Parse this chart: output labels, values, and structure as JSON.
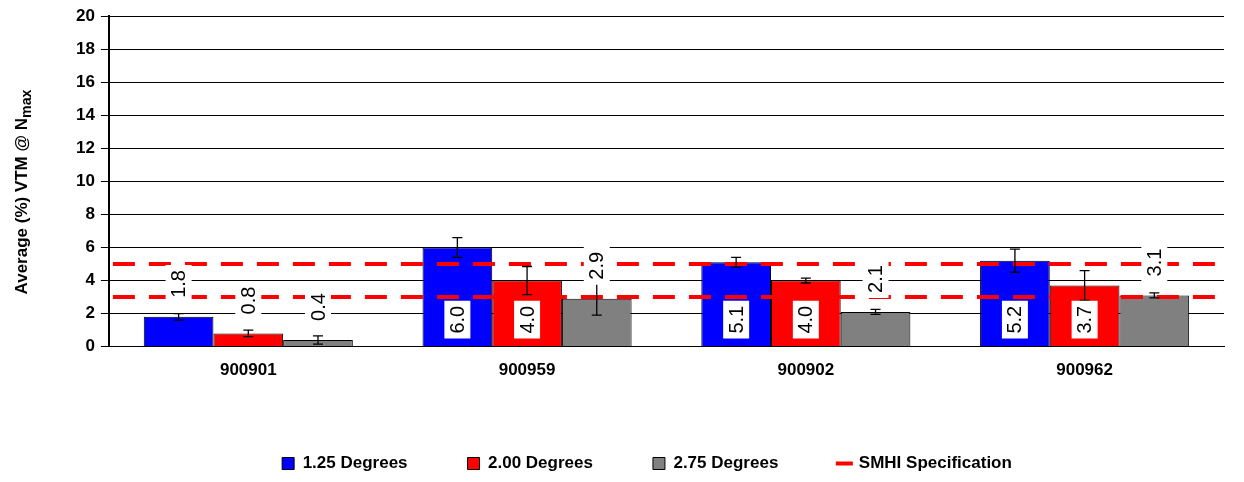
{
  "chart_data": {
    "type": "bar",
    "ylabel": "Average (%) VTM @ N$_{max}$",
    "categories": [
      "900901",
      "900959",
      "900902",
      "900962"
    ],
    "series": [
      {
        "name": "1.25 Degrees",
        "color": "#0000ff",
        "values": [
          1.8,
          6.0,
          5.1,
          5.2
        ],
        "errors": [
          0.2,
          0.6,
          0.3,
          0.7
        ],
        "value_labels": [
          "1.8",
          "6.0",
          "5.1",
          "5.2"
        ]
      },
      {
        "name": "2.00 Degrees",
        "color": "#ff0000",
        "values": [
          0.8,
          4.0,
          4.0,
          3.7
        ],
        "errors": [
          0.2,
          0.85,
          0.15,
          0.9
        ],
        "value_labels": [
          "0.8",
          "4.0",
          "4.0",
          "3.7"
        ]
      },
      {
        "name": "2.75 Degrees",
        "color": "#808080",
        "values": [
          0.4,
          2.9,
          2.1,
          3.1
        ],
        "errors": [
          0.25,
          1.0,
          0.15,
          0.15
        ],
        "value_labels": [
          "0.4",
          "2.9",
          "2.1",
          "3.1"
        ]
      }
    ],
    "ref_lines": [
      {
        "axis": "y",
        "value": 5,
        "label": "SMHI Specification",
        "color": "#ff0000",
        "line_style": "dashed"
      },
      {
        "axis": "y",
        "value": 3,
        "color": "#ff0000",
        "line_style": "dashed"
      }
    ],
    "ylim": [
      0,
      20
    ],
    "yticks": [
      0,
      2,
      4,
      6,
      8,
      10,
      12,
      14,
      16,
      18,
      20
    ],
    "grid": "y",
    "legend": "bottom"
  }
}
